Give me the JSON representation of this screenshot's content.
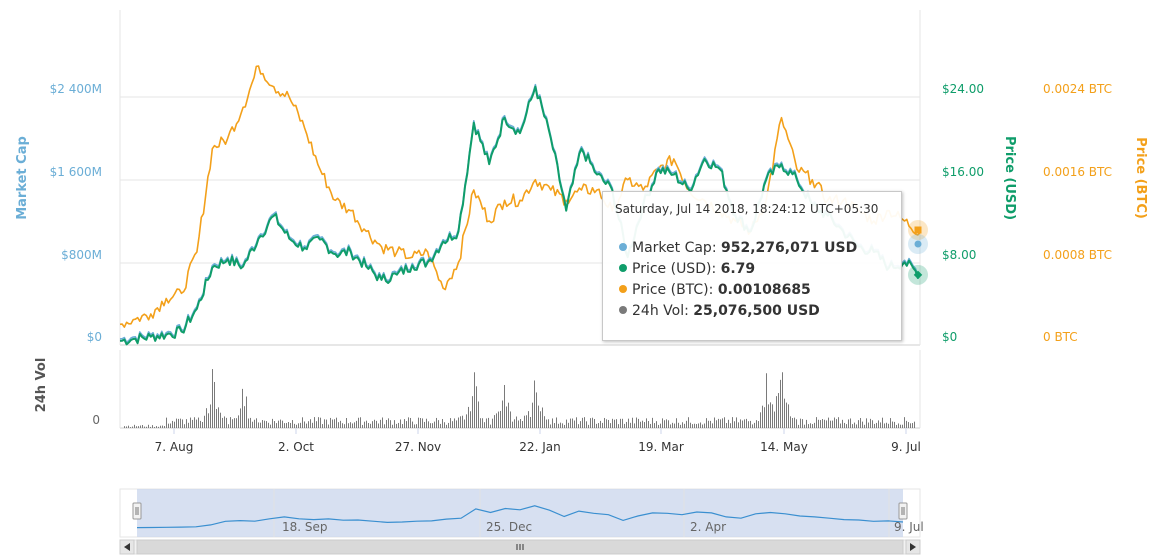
{
  "colors": {
    "market_cap": "#6baed6",
    "price_usd": "#0f9d6a",
    "price_btc": "#f3a01a",
    "volume": "#7a7a7a",
    "navigator_fill": "#c9d6ec",
    "navigator_line": "#3a8fd0"
  },
  "axes": {
    "market_cap": {
      "title": "Market Cap",
      "ticks": [
        "$0",
        "$800M",
        "$1 600M",
        "$2 400M"
      ]
    },
    "price_usd": {
      "title": "Price (USD)",
      "ticks": [
        "$0",
        "$8.00",
        "$16.00",
        "$24.00"
      ]
    },
    "price_btc": {
      "title": "Price (BTC)",
      "ticks": [
        "0 BTC",
        "0.0008 BTC",
        "0.0016 BTC",
        "0.0024 BTC"
      ]
    },
    "volume": {
      "title": "24h Vol",
      "ticks": [
        "0"
      ]
    },
    "x_ticks": [
      "7. Aug",
      "2. Oct",
      "27. Nov",
      "22. Jan",
      "19. Mar",
      "14. May",
      "9. Jul"
    ],
    "navigator_ticks": [
      "18. Sep",
      "25. Dec",
      "2. Apr",
      "9. Jul"
    ]
  },
  "tooltip": {
    "date": "Saturday, Jul 14 2018, 18:24:12 UTC+05:30",
    "rows": [
      {
        "label": "Market Cap:",
        "value": "952,276,071 USD"
      },
      {
        "label": "Price (USD):",
        "value": "6.79"
      },
      {
        "label": "Price (BTC):",
        "value": "0.00108685"
      },
      {
        "label": "24h Vol:",
        "value": "25,076,500 USD"
      }
    ]
  },
  "chart_data": {
    "type": "line",
    "x_start": "2017-07-15",
    "x_end": "2018-07-14",
    "x_ticks": [
      {
        "label": "7. Aug",
        "date": "2017-08-07"
      },
      {
        "label": "2. Oct",
        "date": "2017-10-02"
      },
      {
        "label": "27. Nov",
        "date": "2017-11-27"
      },
      {
        "label": "22. Jan",
        "date": "2018-01-22"
      },
      {
        "label": "19. Mar",
        "date": "2018-03-19"
      },
      {
        "label": "14. May",
        "date": "2018-05-14"
      },
      {
        "label": "9. Jul",
        "date": "2018-07-09"
      }
    ],
    "series": [
      {
        "name": "Market Cap",
        "unit": "USD",
        "ylim": [
          0,
          2400000000
        ]
      },
      {
        "name": "Price (USD)",
        "unit": "USD",
        "ylim": [
          0,
          24
        ],
        "points": [
          [
            "2017-07-15",
            0.4
          ],
          [
            "2017-07-22",
            0.6
          ],
          [
            "2017-07-29",
            0.8
          ],
          [
            "2017-08-05",
            1.0
          ],
          [
            "2017-08-12",
            1.3
          ],
          [
            "2017-08-19",
            3.5
          ],
          [
            "2017-08-26",
            7.5
          ],
          [
            "2017-09-02",
            8.3
          ],
          [
            "2017-09-09",
            7.6
          ],
          [
            "2017-09-16",
            10.3
          ],
          [
            "2017-09-23",
            12.5
          ],
          [
            "2017-09-30",
            10.3
          ],
          [
            "2017-10-07",
            9.4
          ],
          [
            "2017-10-14",
            10.2
          ],
          [
            "2017-10-21",
            8.8
          ],
          [
            "2017-10-28",
            9.0
          ],
          [
            "2017-11-04",
            7.6
          ],
          [
            "2017-11-11",
            6.3
          ],
          [
            "2017-11-18",
            6.8
          ],
          [
            "2017-11-25",
            7.7
          ],
          [
            "2017-12-02",
            8.0
          ],
          [
            "2017-12-09",
            10.0
          ],
          [
            "2017-12-16",
            11.0
          ],
          [
            "2017-12-23",
            21.5
          ],
          [
            "2017-12-30",
            17.5
          ],
          [
            "2018-01-06",
            22.0
          ],
          [
            "2018-01-13",
            20.5
          ],
          [
            "2018-01-20",
            25.0
          ],
          [
            "2018-01-27",
            20.0
          ],
          [
            "2018-02-03",
            13.0
          ],
          [
            "2018-02-10",
            19.0
          ],
          [
            "2018-02-17",
            16.5
          ],
          [
            "2018-02-24",
            15.0
          ],
          [
            "2018-03-03",
            8.5
          ],
          [
            "2018-03-10",
            13.5
          ],
          [
            "2018-03-17",
            17.0
          ],
          [
            "2018-03-24",
            16.5
          ],
          [
            "2018-03-31",
            15.0
          ],
          [
            "2018-04-07",
            18.0
          ],
          [
            "2018-04-14",
            17.0
          ],
          [
            "2018-04-21",
            12.5
          ],
          [
            "2018-04-28",
            11.0
          ],
          [
            "2018-05-05",
            16.0
          ],
          [
            "2018-05-12",
            17.5
          ],
          [
            "2018-05-19",
            16.0
          ],
          [
            "2018-05-26",
            13.5
          ],
          [
            "2018-06-02",
            12.5
          ],
          [
            "2018-06-09",
            11.0
          ],
          [
            "2018-06-16",
            9.5
          ],
          [
            "2018-06-23",
            9.0
          ],
          [
            "2018-06-30",
            7.5
          ],
          [
            "2018-07-07",
            8.0
          ],
          [
            "2018-07-14",
            6.79
          ]
        ]
      },
      {
        "name": "Price (BTC)",
        "unit": "BTC",
        "ylim": [
          0,
          0.0024
        ],
        "points": [
          [
            "2017-07-15",
            0.0002
          ],
          [
            "2017-07-22",
            0.00025
          ],
          [
            "2017-07-29",
            0.0003
          ],
          [
            "2017-08-05",
            0.00045
          ],
          [
            "2017-08-12",
            0.0005
          ],
          [
            "2017-08-19",
            0.0009
          ],
          [
            "2017-08-26",
            0.0019
          ],
          [
            "2017-09-02",
            0.002
          ],
          [
            "2017-09-09",
            0.0023
          ],
          [
            "2017-09-16",
            0.0027
          ],
          [
            "2017-09-23",
            0.0025
          ],
          [
            "2017-09-30",
            0.0024
          ],
          [
            "2017-10-07",
            0.0021
          ],
          [
            "2017-10-14",
            0.0017
          ],
          [
            "2017-10-21",
            0.0014
          ],
          [
            "2017-10-28",
            0.0013
          ],
          [
            "2017-11-04",
            0.0011
          ],
          [
            "2017-11-11",
            0.00095
          ],
          [
            "2017-11-18",
            0.0009
          ],
          [
            "2017-11-25",
            0.00085
          ],
          [
            "2017-12-02",
            0.0009
          ],
          [
            "2017-12-09",
            0.00055
          ],
          [
            "2017-12-16",
            0.0008
          ],
          [
            "2017-12-23",
            0.0015
          ],
          [
            "2017-12-30",
            0.0012
          ],
          [
            "2018-01-06",
            0.0014
          ],
          [
            "2018-01-13",
            0.0014
          ],
          [
            "2018-01-20",
            0.0016
          ],
          [
            "2018-01-27",
            0.0015
          ],
          [
            "2018-02-03",
            0.0014
          ],
          [
            "2018-02-10",
            0.0015
          ],
          [
            "2018-02-17",
            0.0015
          ],
          [
            "2018-02-24",
            0.0013
          ],
          [
            "2018-03-03",
            0.0016
          ],
          [
            "2018-03-10",
            0.0015
          ],
          [
            "2018-03-17",
            0.0017
          ],
          [
            "2018-03-24",
            0.0018
          ],
          [
            "2018-03-31",
            0.0015
          ],
          [
            "2018-04-07",
            0.0014
          ],
          [
            "2018-04-14",
            0.0013
          ],
          [
            "2018-04-21",
            0.0012
          ],
          [
            "2018-04-28",
            0.0011
          ],
          [
            "2018-05-05",
            0.0014
          ],
          [
            "2018-05-12",
            0.0022
          ],
          [
            "2018-05-19",
            0.0017
          ],
          [
            "2018-05-26",
            0.0016
          ],
          [
            "2018-06-02",
            0.0014
          ],
          [
            "2018-06-09",
            0.0014
          ],
          [
            "2018-06-16",
            0.0013
          ],
          [
            "2018-06-23",
            0.0012
          ],
          [
            "2018-06-30",
            0.0013
          ],
          [
            "2018-07-07",
            0.0012
          ],
          [
            "2018-07-14",
            0.00108685
          ]
        ]
      },
      {
        "name": "24h Vol",
        "unit": "USD"
      }
    ]
  }
}
